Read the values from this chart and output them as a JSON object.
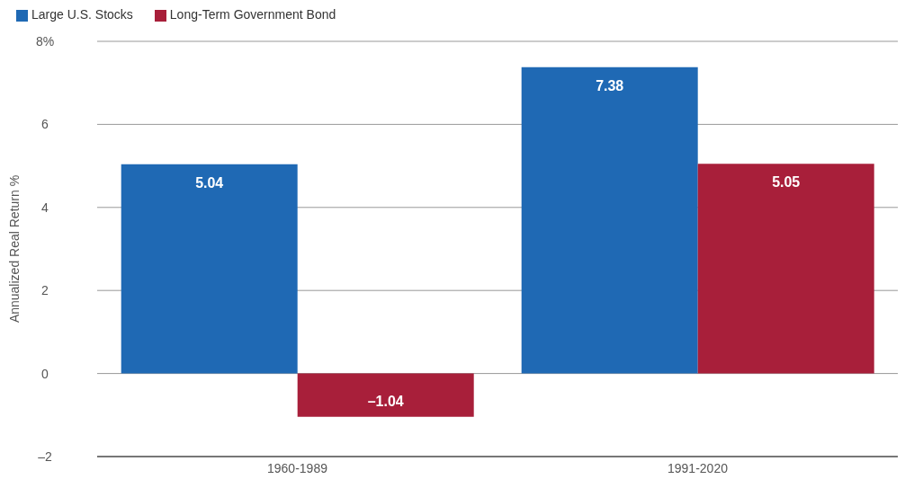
{
  "chart_data": {
    "type": "bar",
    "ylabel": "Annualized Real Return %",
    "categories": [
      "1960-1989",
      "1991-2020"
    ],
    "series": [
      {
        "name": "Large U.S. Stocks",
        "color": "#1f69b4",
        "values": [
          5.04,
          7.38
        ],
        "value_labels": [
          "5.04",
          "7.38"
        ]
      },
      {
        "name": "Long-Term Government Bond",
        "color": "#a81f3a",
        "values": [
          -1.04,
          5.05
        ],
        "value_labels": [
          "–1.04",
          "5.05"
        ]
      }
    ],
    "ylim": [
      -2,
      8
    ],
    "yticks": [
      {
        "value": -2,
        "label": "–2"
      },
      0,
      2,
      4,
      6,
      {
        "value": 8,
        "label": "8%"
      }
    ],
    "grid": "y",
    "legend": "top left"
  }
}
